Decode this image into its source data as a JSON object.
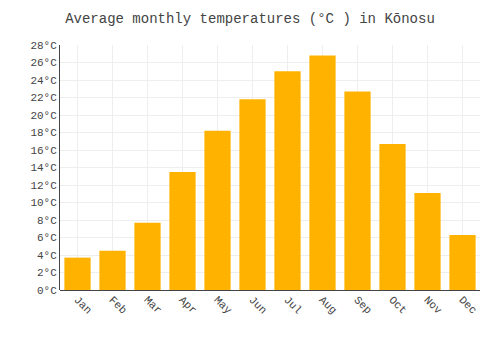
{
  "chart_data": {
    "type": "bar",
    "title": "Average monthly temperatures (°C ) in Kōnosu",
    "categories": [
      "Jan",
      "Feb",
      "Mar",
      "Apr",
      "May",
      "Jun",
      "Jul",
      "Aug",
      "Sep",
      "Oct",
      "Nov",
      "Dec"
    ],
    "values": [
      3.7,
      4.5,
      7.7,
      13.5,
      18.2,
      21.8,
      25.0,
      26.8,
      22.7,
      16.7,
      11.1,
      6.3
    ],
    "color": "#FFB300",
    "ylim": [
      0,
      28
    ],
    "yticks": [
      {
        "value": 0,
        "label": "0°C"
      },
      {
        "value": 2,
        "label": "2°C"
      },
      {
        "value": 4,
        "label": "4°C"
      },
      {
        "value": 6,
        "label": "6°C"
      },
      {
        "value": 8,
        "label": "8°C"
      },
      {
        "value": 10,
        "label": "10°C"
      },
      {
        "value": 12,
        "label": "12°C"
      },
      {
        "value": 14,
        "label": "14°C"
      },
      {
        "value": 16,
        "label": "16°C"
      },
      {
        "value": 18,
        "label": "18°C"
      },
      {
        "value": 20,
        "label": "20°C"
      },
      {
        "value": 22,
        "label": "22°C"
      },
      {
        "value": 24,
        "label": "24°C"
      },
      {
        "value": 26,
        "label": "26°C"
      },
      {
        "value": 28,
        "label": "28°C"
      }
    ],
    "grid": true
  }
}
